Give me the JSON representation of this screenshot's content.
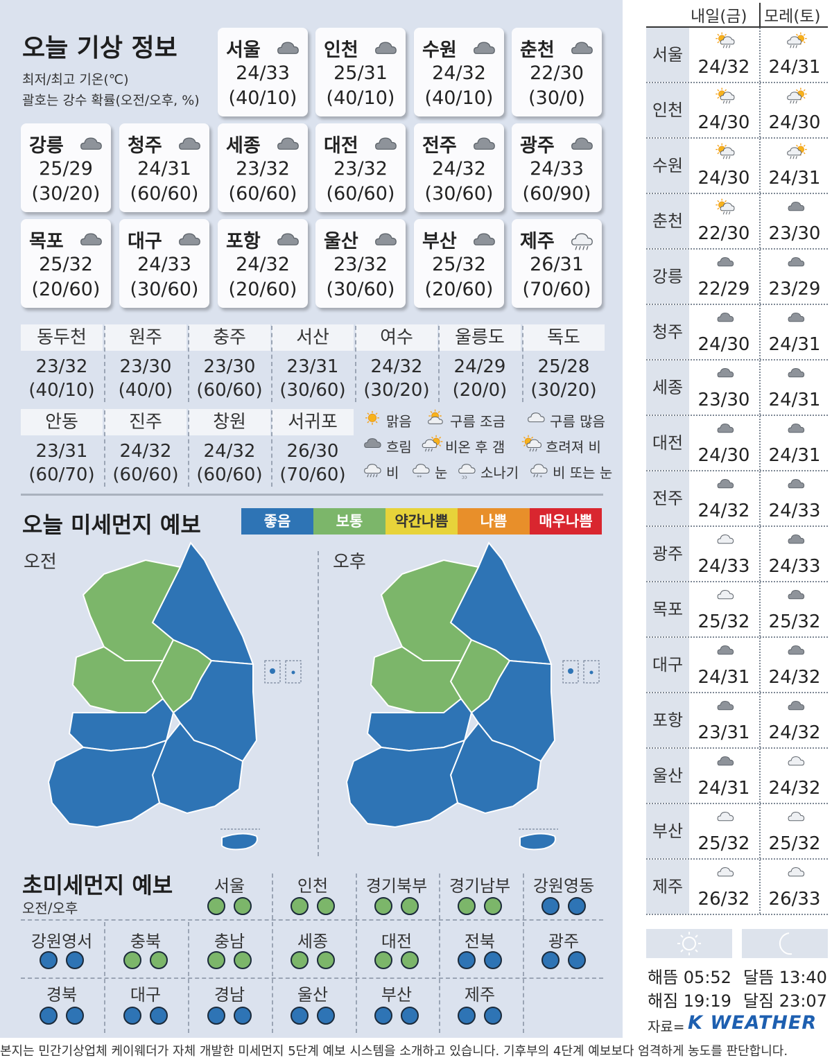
{
  "today": {
    "title": "오늘 기상 정보",
    "subtitle1": "최저/최고 기온(℃)",
    "subtitle2": "괄호는 강수 확률(오전/오후, %)",
    "cards": [
      {
        "name": "서울",
        "temp": "24/33",
        "prob": "(40/10)",
        "icon": "cloud"
      },
      {
        "name": "인천",
        "temp": "25/31",
        "prob": "(40/10)",
        "icon": "cloud"
      },
      {
        "name": "수원",
        "temp": "24/32",
        "prob": "(40/10)",
        "icon": "cloud"
      },
      {
        "name": "춘천",
        "temp": "22/30",
        "prob": "(30/0)",
        "icon": "cloud"
      },
      {
        "name": "강릉",
        "temp": "25/29",
        "prob": "(30/20)",
        "icon": "cloud"
      },
      {
        "name": "청주",
        "temp": "24/31",
        "prob": "(60/60)",
        "icon": "cloud"
      },
      {
        "name": "세종",
        "temp": "23/32",
        "prob": "(60/60)",
        "icon": "cloud"
      },
      {
        "name": "대전",
        "temp": "23/32",
        "prob": "(60/60)",
        "icon": "cloud"
      },
      {
        "name": "전주",
        "temp": "24/32",
        "prob": "(30/60)",
        "icon": "cloud"
      },
      {
        "name": "광주",
        "temp": "24/33",
        "prob": "(60/90)",
        "icon": "cloud"
      },
      {
        "name": "목포",
        "temp": "25/32",
        "prob": "(20/60)",
        "icon": "cloud"
      },
      {
        "name": "대구",
        "temp": "24/33",
        "prob": "(30/60)",
        "icon": "cloud"
      },
      {
        "name": "포항",
        "temp": "24/32",
        "prob": "(20/60)",
        "icon": "cloud"
      },
      {
        "name": "울산",
        "temp": "23/32",
        "prob": "(30/60)",
        "icon": "cloud"
      },
      {
        "name": "부산",
        "temp": "25/32",
        "prob": "(20/60)",
        "icon": "cloud"
      },
      {
        "name": "제주",
        "temp": "26/31",
        "prob": "(70/60)",
        "icon": "rain"
      }
    ],
    "grid1": [
      {
        "name": "동두천",
        "temp": "23/32",
        "prob": "(40/10)"
      },
      {
        "name": "원주",
        "temp": "23/30",
        "prob": "(40/0)"
      },
      {
        "name": "충주",
        "temp": "23/30",
        "prob": "(60/60)"
      },
      {
        "name": "서산",
        "temp": "23/31",
        "prob": "(30/60)"
      },
      {
        "name": "여수",
        "temp": "24/32",
        "prob": "(30/20)"
      },
      {
        "name": "울릉도",
        "temp": "24/29",
        "prob": "(20/0)"
      },
      {
        "name": "독도",
        "temp": "25/28",
        "prob": "(30/20)"
      }
    ],
    "grid2": [
      {
        "name": "안동",
        "temp": "23/31",
        "prob": "(60/70)"
      },
      {
        "name": "진주",
        "temp": "24/32",
        "prob": "(60/60)"
      },
      {
        "name": "창원",
        "temp": "24/32",
        "prob": "(60/60)"
      },
      {
        "name": "서귀포",
        "temp": "26/30",
        "prob": "(70/60)"
      }
    ]
  },
  "legend": [
    {
      "label": "맑음",
      "icon": "sun"
    },
    {
      "label": "구름 조금",
      "icon": "sun-cloud"
    },
    {
      "label": "구름 많음",
      "icon": "cloud-outline"
    },
    {
      "label": "흐림",
      "icon": "cloud"
    },
    {
      "label": "비온 후 갬",
      "icon": "rain-sun"
    },
    {
      "label": "흐려져 비",
      "icon": "sun-rain"
    },
    {
      "label": "비",
      "icon": "rain"
    },
    {
      "label": "눈",
      "icon": "snow"
    },
    {
      "label": "소나기",
      "icon": "shower"
    },
    {
      "label": "비 또는 눈",
      "icon": "sleet"
    }
  ],
  "dust": {
    "title": "오늘 미세먼지 예보",
    "am_label": "오전",
    "pm_label": "오후",
    "scale": [
      {
        "label": "좋음",
        "color": "#2e74b5",
        "text": "#ffffff"
      },
      {
        "label": "보통",
        "color": "#7cb66a",
        "text": "#ffffff"
      },
      {
        "label": "약간나쁨",
        "color": "#e7d33a",
        "text": "#333333"
      },
      {
        "label": "나쁨",
        "color": "#e88f2a",
        "text": "#ffffff"
      },
      {
        "label": "매우나쁨",
        "color": "#d9262f",
        "text": "#ffffff"
      }
    ]
  },
  "pm25": {
    "title": "초미세먼지 예보",
    "subtitle": "오전/오후",
    "row1": [
      {
        "name": "서울",
        "am": "green",
        "pm": "green"
      },
      {
        "name": "인천",
        "am": "green",
        "pm": "green"
      },
      {
        "name": "경기북부",
        "am": "green",
        "pm": "green"
      },
      {
        "name": "경기남부",
        "am": "green",
        "pm": "green"
      },
      {
        "name": "강원영동",
        "am": "blue",
        "pm": "blue"
      }
    ],
    "row2": [
      {
        "name": "강원영서",
        "am": "blue",
        "pm": "blue"
      },
      {
        "name": "충북",
        "am": "green",
        "pm": "green"
      },
      {
        "name": "충남",
        "am": "green",
        "pm": "green"
      },
      {
        "name": "세종",
        "am": "green",
        "pm": "green"
      },
      {
        "name": "대전",
        "am": "green",
        "pm": "green"
      },
      {
        "name": "전북",
        "am": "blue",
        "pm": "blue"
      },
      {
        "name": "광주",
        "am": "blue",
        "pm": "blue"
      }
    ],
    "row3": [
      {
        "name": "경북",
        "am": "blue",
        "pm": "blue"
      },
      {
        "name": "대구",
        "am": "blue",
        "pm": "blue"
      },
      {
        "name": "경남",
        "am": "blue",
        "pm": "blue"
      },
      {
        "name": "울산",
        "am": "blue",
        "pm": "blue"
      },
      {
        "name": "부산",
        "am": "blue",
        "pm": "blue"
      },
      {
        "name": "제주",
        "am": "blue",
        "pm": "blue"
      }
    ]
  },
  "forecast": {
    "col1": "내일(금)",
    "col2": "모레(토)",
    "rows": [
      {
        "city": "서울",
        "d1": "24/32",
        "i1": "sun-rain",
        "d2": "24/31",
        "i2": "rain-sun"
      },
      {
        "city": "인천",
        "d1": "24/30",
        "i1": "sun-rain",
        "d2": "24/30",
        "i2": "rain-sun"
      },
      {
        "city": "수원",
        "d1": "24/30",
        "i1": "sun-rain",
        "d2": "24/31",
        "i2": "rain-sun"
      },
      {
        "city": "춘천",
        "d1": "22/30",
        "i1": "sun-rain",
        "d2": "23/30",
        "i2": "cloud"
      },
      {
        "city": "강릉",
        "d1": "22/29",
        "i1": "cloud",
        "d2": "23/29",
        "i2": "cloud"
      },
      {
        "city": "청주",
        "d1": "24/30",
        "i1": "cloud",
        "d2": "24/31",
        "i2": "cloud"
      },
      {
        "city": "세종",
        "d1": "23/30",
        "i1": "cloud",
        "d2": "24/31",
        "i2": "cloud"
      },
      {
        "city": "대전",
        "d1": "24/30",
        "i1": "cloud",
        "d2": "24/31",
        "i2": "cloud"
      },
      {
        "city": "전주",
        "d1": "24/32",
        "i1": "cloud",
        "d2": "24/33",
        "i2": "cloud"
      },
      {
        "city": "광주",
        "d1": "24/33",
        "i1": "cloud-outline",
        "d2": "24/33",
        "i2": "cloud"
      },
      {
        "city": "목포",
        "d1": "25/32",
        "i1": "cloud-outline",
        "d2": "25/32",
        "i2": "cloud"
      },
      {
        "city": "대구",
        "d1": "24/31",
        "i1": "cloud",
        "d2": "24/32",
        "i2": "cloud"
      },
      {
        "city": "포항",
        "d1": "23/31",
        "i1": "cloud",
        "d2": "24/32",
        "i2": "cloud"
      },
      {
        "city": "울산",
        "d1": "24/31",
        "i1": "cloud",
        "d2": "24/32",
        "i2": "cloud-outline"
      },
      {
        "city": "부산",
        "d1": "25/32",
        "i1": "cloud-outline",
        "d2": "25/32",
        "i2": "cloud-outline"
      },
      {
        "city": "제주",
        "d1": "26/32",
        "i1": "cloud-outline",
        "d2": "26/33",
        "i2": "cloud-outline"
      }
    ]
  },
  "astro": {
    "sunrise": "해뜸 05:52",
    "sunset": "해짐 19:19",
    "moonrise": "달뜸 13:40",
    "moonset": "달짐 23:07"
  },
  "source": {
    "prefix": "자료=",
    "brand": "K WEATHER"
  },
  "footer": "본지는 민간기상업체 케이웨더가 자체 개발한 미세먼지 5단계 예보 시스템을 소개하고 있습니다. 기후부의 4단계 예보보다 엄격하게 농도를 판단합니다."
}
